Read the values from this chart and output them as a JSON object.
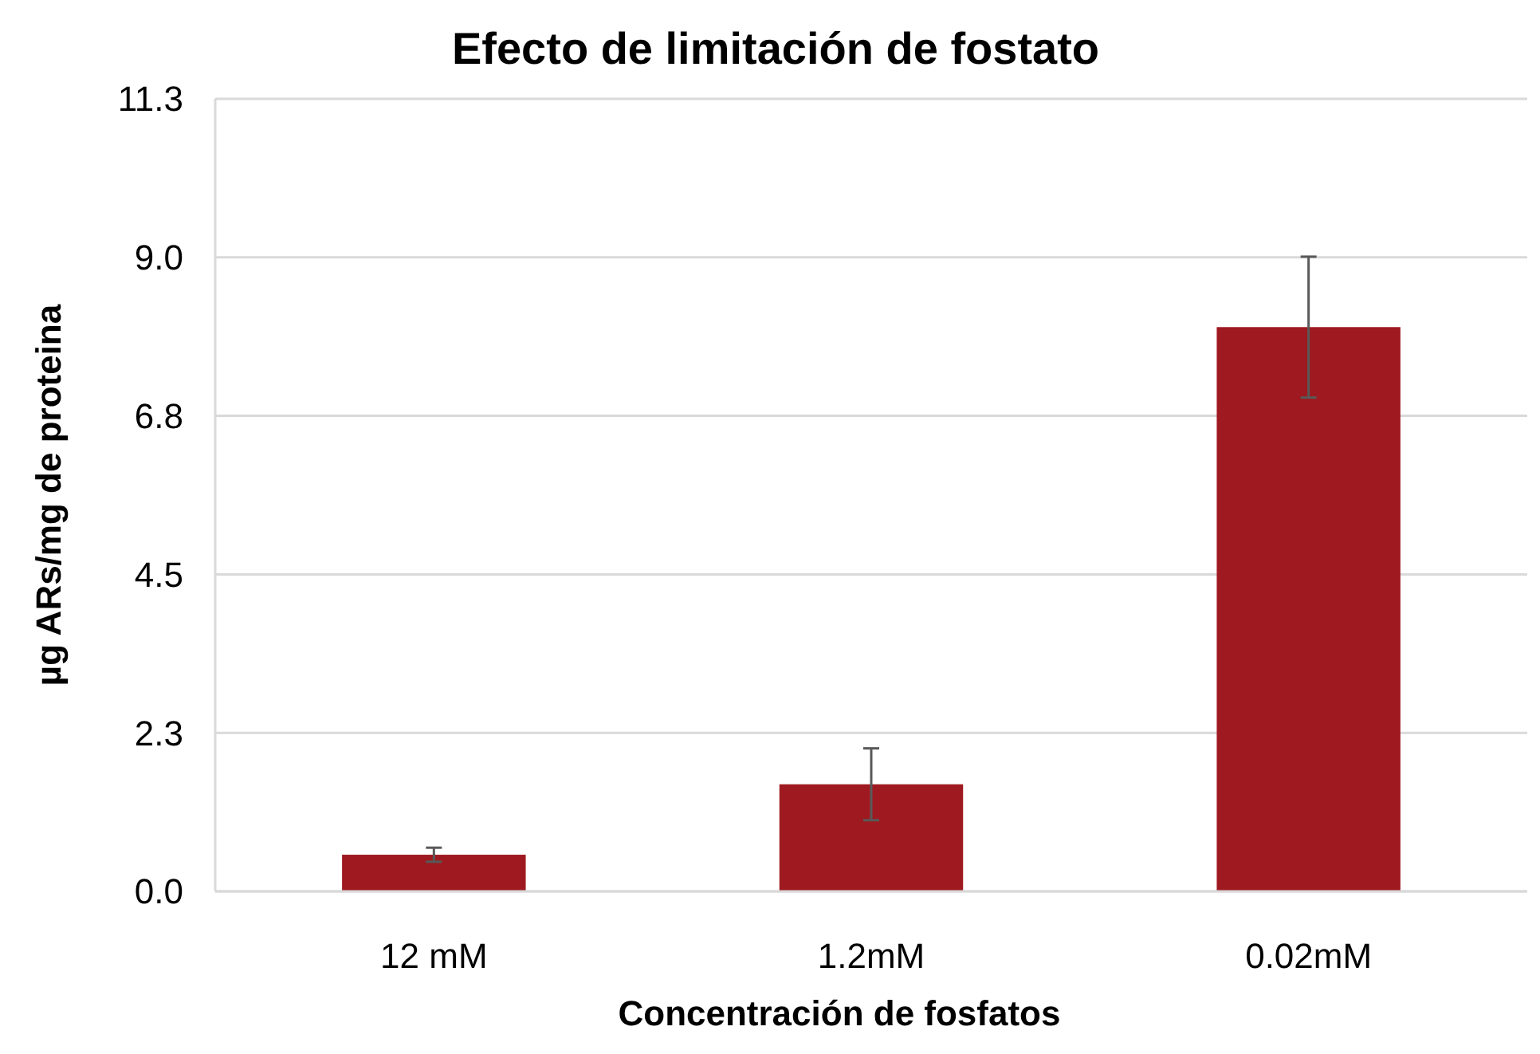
{
  "chart_data": {
    "type": "bar",
    "title": "Efecto de limitación de fostato",
    "xlabel": "Concentración de fosfatos",
    "ylabel": "µg ARs/mg de proteina",
    "categories": [
      "12 mM",
      "1.2mM",
      "0.02mM"
    ],
    "values": [
      0.52,
      1.52,
      8.01
    ],
    "errors": [
      0.1,
      0.51,
      1.0
    ],
    "color": "#9e1a20",
    "ylim": [
      0,
      11.25
    ],
    "yticks": [
      {
        "value": 0,
        "label": "0.0"
      },
      {
        "value": 2.25,
        "label": "2.3"
      },
      {
        "value": 4.5,
        "label": "4.5"
      },
      {
        "value": 6.75,
        "label": "6.8"
      },
      {
        "value": 9,
        "label": "9.0"
      },
      {
        "value": 11.25,
        "label": "11.3"
      }
    ],
    "grid": "y"
  }
}
